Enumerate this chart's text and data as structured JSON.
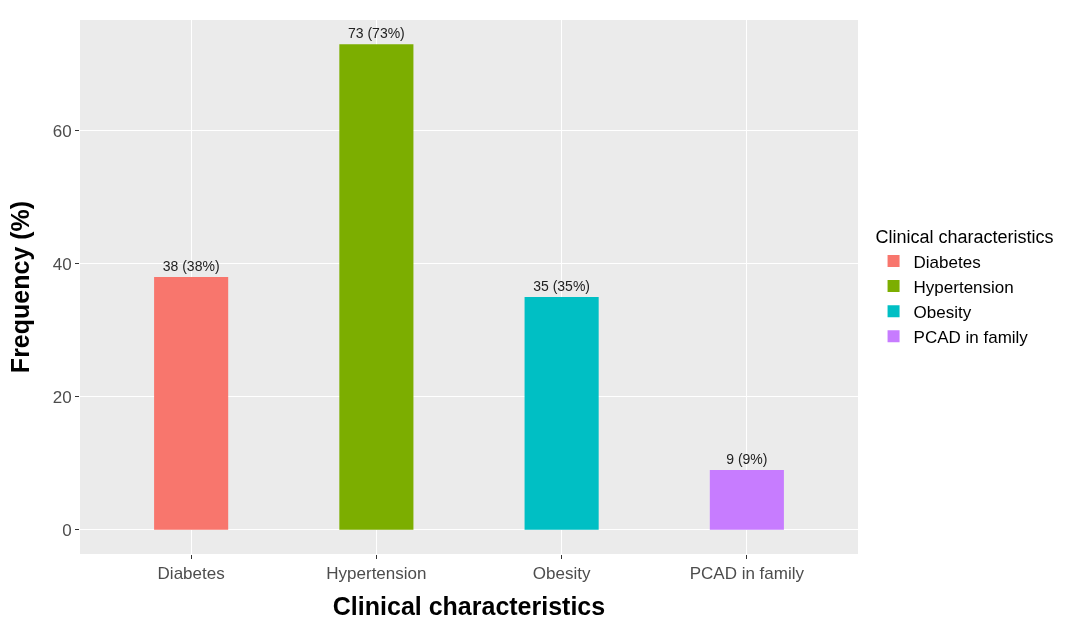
{
  "chart_data": {
    "type": "bar",
    "xlabel": "Clinical characteristics",
    "ylabel": "Frequency (%)",
    "legend_title": "Clinical characteristics",
    "categories": [
      "Diabetes",
      "Hypertension",
      "Obesity",
      "PCAD in family"
    ],
    "series": [
      {
        "name": "Diabetes",
        "color": "#f8766d",
        "values": [
          38,
          null,
          null,
          null
        ],
        "value_labels": [
          "38 (38%)",
          null,
          null,
          null
        ]
      },
      {
        "name": "Hypertension",
        "color": "#7cae00",
        "values": [
          null,
          73,
          null,
          null
        ],
        "value_labels": [
          null,
          "73 (73%)",
          null,
          null
        ]
      },
      {
        "name": "Obesity",
        "color": "#00bfc4",
        "values": [
          null,
          null,
          35,
          null
        ],
        "value_labels": [
          null,
          null,
          "35 (35%)",
          null
        ]
      },
      {
        "name": "PCAD in family",
        "color": "#c77cff",
        "values": [
          null,
          null,
          null,
          9
        ],
        "value_labels": [
          null,
          null,
          null,
          "9 (9%)"
        ]
      }
    ],
    "ylim": [
      -3.65,
      76.65
    ],
    "yticks": [
      0,
      20,
      40,
      60
    ],
    "grid": true,
    "legend": "right"
  }
}
